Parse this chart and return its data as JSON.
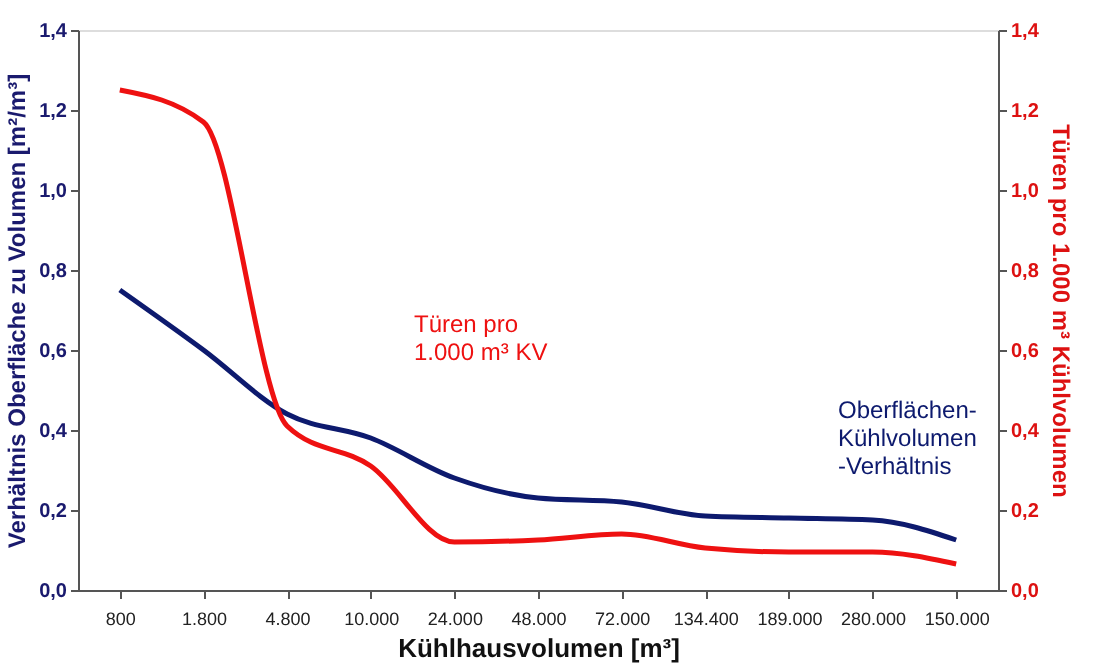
{
  "chart_data": {
    "type": "line",
    "xlabel": "Kühlhausvolumen [m³]",
    "ylabel": "Verhältnis Oberfläche zu Volumen [m²/m³]",
    "y2label": "Türen pro 1.000 m³ Kühlvolumen",
    "categories": [
      "800",
      "1.800",
      "4.800",
      "10.000",
      "24.000",
      "48.000",
      "72.000",
      "134.400",
      "189.000",
      "280.000",
      "150.000"
    ],
    "series": [
      {
        "name": "Oberflächen-\nKühlvolumen\n-Verhältnis",
        "color": "#0d1a6e",
        "values": [
          0.75,
          0.6,
          0.44,
          0.38,
          0.28,
          0.23,
          0.22,
          0.185,
          0.18,
          0.175,
          0.125
        ]
      },
      {
        "name": "Türen pro\n1.000 m³ KV",
        "color": "#ee1111",
        "axis": "y2",
        "values": [
          1.25,
          1.17,
          0.41,
          0.31,
          0.12,
          0.125,
          0.14,
          0.105,
          0.095,
          0.095,
          0.065
        ]
      }
    ],
    "ylim": [
      0,
      1.4
    ],
    "yticks": [
      {
        "value": 0,
        "label": "0,0"
      },
      {
        "value": 0.2,
        "label": "0,2"
      },
      {
        "value": 0.4,
        "label": "0,4"
      },
      {
        "value": 0.6,
        "label": "0,6"
      },
      {
        "value": 0.8,
        "label": "0,8"
      },
      {
        "value": 1.0,
        "label": "1,0"
      },
      {
        "value": 1.2,
        "label": "1,2"
      },
      {
        "value": 1.4,
        "label": "1,4"
      }
    ],
    "y2lim": [
      0,
      1.4
    ],
    "y2ticks": [
      {
        "value": 0,
        "label": "0,0"
      },
      {
        "value": 0.2,
        "label": "0,2"
      },
      {
        "value": 0.4,
        "label": "0,4"
      },
      {
        "value": 0.6,
        "label": "0,6"
      },
      {
        "value": 0.8,
        "label": "0,8"
      },
      {
        "value": 1.0,
        "label": "1,0"
      },
      {
        "value": 1.2,
        "label": "1,2"
      },
      {
        "value": 1.4,
        "label": "1,4"
      }
    ],
    "grid": false,
    "marker": "none",
    "line_style": "solid"
  }
}
